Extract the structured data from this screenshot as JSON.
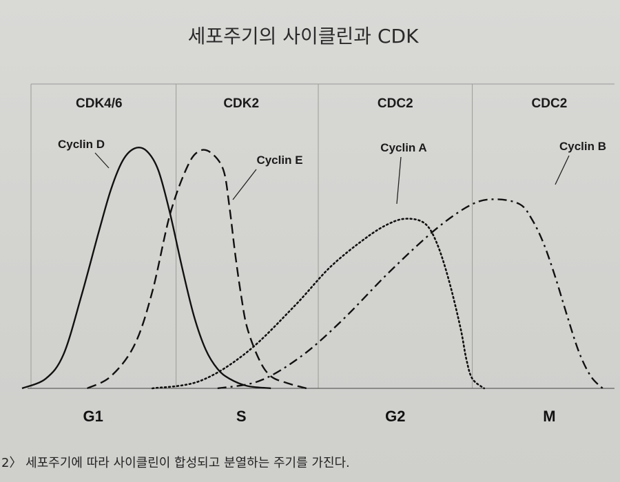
{
  "title": "세포주기의 사이클린과 CDK",
  "caption": "2〉 세포주기에 따라 사이클린이 합성되고 분열하는 주기를 가진다.",
  "chart_data": {
    "type": "line",
    "cdk_labels": [
      "CDK4/6",
      "CDK2",
      "CDC2",
      "CDC2"
    ],
    "phases": [
      "G1",
      "S",
      "G2",
      "M"
    ],
    "xlim": [
      0,
      100
    ],
    "ylim": [
      0,
      100
    ],
    "grid": "vertical",
    "series": [
      {
        "name": "Cyclin D",
        "style": "solid",
        "x": [
          0,
          4,
          7,
          10,
          13,
          15,
          17,
          19,
          21,
          23,
          25,
          27,
          29,
          31,
          33,
          35,
          38,
          42
        ],
        "y": [
          0,
          4,
          14,
          38,
          65,
          82,
          94,
          99,
          98,
          90,
          72,
          50,
          30,
          16,
          8,
          4,
          1,
          0
        ]
      },
      {
        "name": "Cyclin E",
        "style": "dashed",
        "x": [
          11,
          15,
          19,
          22,
          25,
          28,
          30,
          32,
          34,
          35,
          36,
          37,
          38,
          40,
          42,
          45,
          48
        ],
        "y": [
          0,
          5,
          18,
          40,
          72,
          92,
          98,
          97,
          90,
          75,
          55,
          38,
          25,
          12,
          5,
          2,
          0
        ]
      },
      {
        "name": "Cyclin A",
        "style": "dotted",
        "x": [
          22,
          30,
          38,
          46,
          52,
          58,
          62,
          65,
          68,
          70,
          72,
          74,
          75,
          76,
          78
        ],
        "y": [
          0,
          3,
          15,
          34,
          50,
          62,
          68,
          70,
          68,
          60,
          45,
          25,
          12,
          4,
          0
        ]
      },
      {
        "name": "Cyclin B",
        "style": "dash-dot",
        "x": [
          33,
          40,
          47,
          54,
          62,
          70,
          76,
          80,
          84,
          86,
          88,
          90,
          92,
          94,
          96,
          98
        ],
        "y": [
          0,
          3,
          13,
          28,
          48,
          66,
          76,
          78,
          76,
          70,
          60,
          46,
          30,
          15,
          5,
          0
        ]
      }
    ],
    "label_anchors": [
      {
        "series": "Cyclin D",
        "x": 12.5,
        "y": 92
      },
      {
        "series": "Cyclin E",
        "x": 34.5,
        "y": 82
      },
      {
        "series": "Cyclin A",
        "x": 63,
        "y": 80
      },
      {
        "series": "Cyclin B",
        "x": 90,
        "y": 88
      }
    ],
    "cdk_label_x": [
      13,
      37,
      63,
      89
    ],
    "grid_x": [
      26,
      50,
      76
    ],
    "phase_x": [
      12,
      37,
      63,
      89
    ]
  }
}
